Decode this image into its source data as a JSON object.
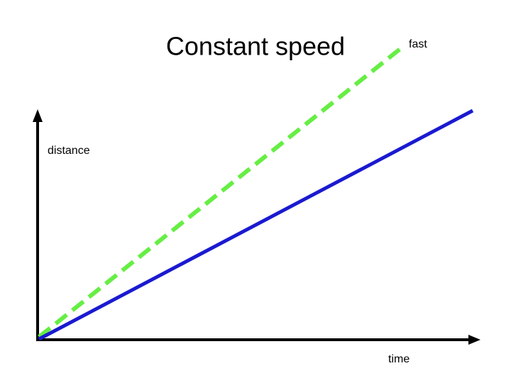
{
  "title": "Constant speed",
  "labels": {
    "fast": "fast",
    "y_axis": "distance",
    "x_axis": "time"
  }
}
